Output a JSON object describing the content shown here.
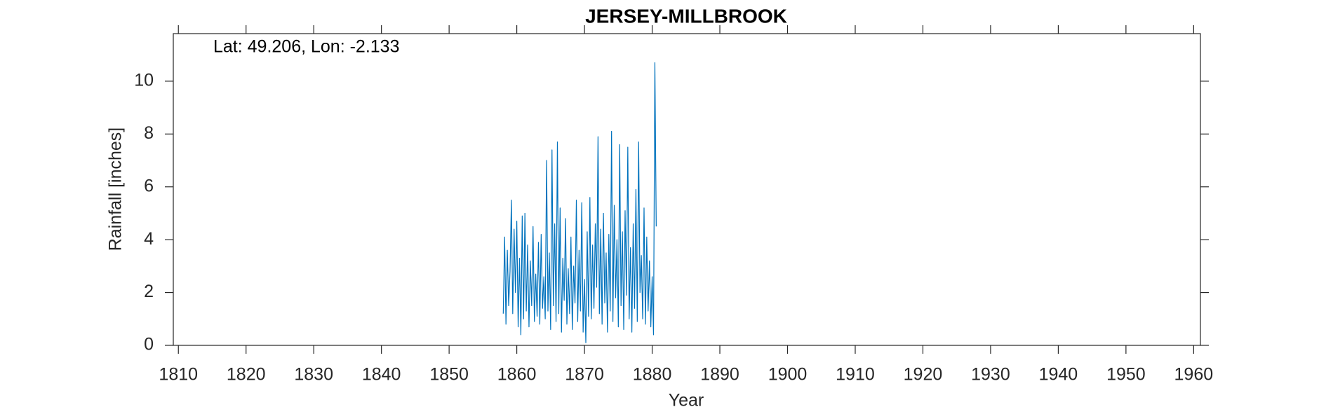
{
  "chart_data": {
    "type": "line",
    "title": "JERSEY-MILLBROOK",
    "annotation": "Lat: 49.206, Lon: -2.133",
    "xlabel": "Year",
    "ylabel": "Rainfall [inches]",
    "color": "#0072bd",
    "xlim": [
      1809.25,
      1961
    ],
    "ylim": [
      0,
      11.8
    ],
    "xticks": [
      1810,
      1820,
      1830,
      1840,
      1850,
      1860,
      1870,
      1880,
      1890,
      1900,
      1910,
      1920,
      1930,
      1940,
      1950,
      1960
    ],
    "yticks": [
      0,
      2,
      4,
      6,
      8,
      10
    ],
    "x": [
      1858.0,
      1858.2,
      1858.4,
      1858.6,
      1858.8,
      1859.0,
      1859.2,
      1859.4,
      1859.6,
      1859.8,
      1860.0,
      1860.2,
      1860.4,
      1860.6,
      1860.8,
      1861.0,
      1861.2,
      1861.4,
      1861.6,
      1861.8,
      1862.0,
      1862.2,
      1862.4,
      1862.6,
      1862.8,
      1863.0,
      1863.2,
      1863.4,
      1863.6,
      1863.8,
      1864.0,
      1864.2,
      1864.4,
      1864.6,
      1864.8,
      1865.0,
      1865.2,
      1865.4,
      1865.6,
      1865.8,
      1866.0,
      1866.2,
      1866.4,
      1866.6,
      1866.8,
      1867.0,
      1867.2,
      1867.4,
      1867.6,
      1867.8,
      1868.0,
      1868.2,
      1868.4,
      1868.6,
      1868.8,
      1869.0,
      1869.2,
      1869.4,
      1869.6,
      1869.8,
      1870.0,
      1870.2,
      1870.4,
      1870.6,
      1870.8,
      1871.0,
      1871.2,
      1871.4,
      1871.6,
      1871.8,
      1872.0,
      1872.2,
      1872.4,
      1872.6,
      1872.8,
      1873.0,
      1873.2,
      1873.4,
      1873.6,
      1873.8,
      1874.0,
      1874.2,
      1874.4,
      1874.6,
      1874.8,
      1875.0,
      1875.2,
      1875.4,
      1875.6,
      1875.8,
      1876.0,
      1876.2,
      1876.4,
      1876.6,
      1876.8,
      1877.0,
      1877.2,
      1877.4,
      1877.6,
      1877.8,
      1878.0,
      1878.2,
      1878.4,
      1878.6,
      1878.8,
      1879.0,
      1879.2,
      1879.4,
      1879.6,
      1879.8,
      1880.0,
      1880.2,
      1880.4,
      1880.6
    ],
    "values": [
      1.2,
      4.1,
      0.8,
      3.6,
      1.5,
      2.8,
      5.5,
      1.2,
      4.4,
      2.0,
      4.7,
      0.7,
      3.3,
      0.4,
      4.9,
      1.0,
      5.0,
      1.3,
      3.8,
      0.7,
      3.2,
      1.5,
      4.5,
      0.9,
      2.7,
      1.1,
      3.9,
      0.8,
      4.2,
      1.4,
      2.6,
      1.0,
      7.0,
      1.3,
      3.5,
      0.6,
      7.4,
      1.5,
      4.6,
      0.9,
      7.7,
      1.2,
      5.2,
      0.5,
      3.3,
      1.7,
      4.8,
      0.8,
      2.9,
      1.2,
      4.1,
      0.6,
      3.0,
      1.6,
      5.5,
      0.9,
      3.6,
      1.3,
      5.4,
      0.5,
      2.5,
      0.1,
      4.3,
      1.1,
      5.6,
      1.0,
      3.8,
      1.4,
      4.6,
      2.2,
      7.9,
      1.2,
      4.4,
      0.8,
      5.0,
      1.6,
      3.5,
      0.5,
      4.2,
      1.3,
      8.1,
      0.9,
      5.3,
      1.8,
      4.0,
      0.7,
      7.6,
      1.5,
      4.3,
      0.6,
      5.1,
      1.9,
      7.5,
      1.0,
      3.7,
      0.5,
      4.6,
      1.4,
      5.9,
      0.9,
      7.7,
      2.0,
      3.4,
      1.0,
      5.2,
      0.8,
      4.1,
      1.3,
      3.2,
      0.7,
      2.6,
      0.4,
      10.7,
      4.5
    ]
  }
}
